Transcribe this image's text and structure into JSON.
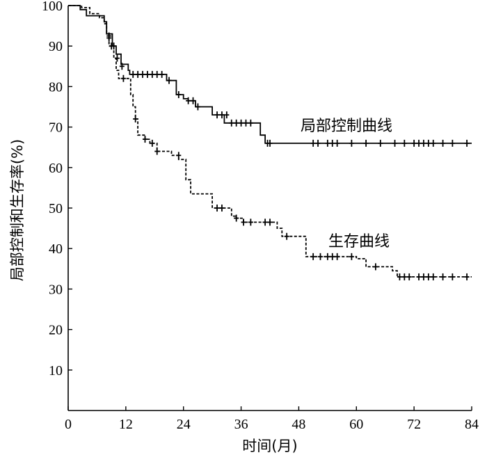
{
  "chart_data": {
    "type": "line",
    "xlabel": "时间(月)",
    "ylabel": "局部控制和生存率(%)",
    "xlim": [
      0,
      84
    ],
    "ylim": [
      0,
      100
    ],
    "x_ticks": [
      "0",
      "12",
      "24",
      "36",
      "48",
      "60",
      "72",
      "84"
    ],
    "y_ticks": [
      "10",
      "20",
      "30",
      "40",
      "50",
      "60",
      "70",
      "80",
      "90",
      "100"
    ],
    "grid": false,
    "legend": "none",
    "series": [
      {
        "name": "局部控制曲线",
        "line_style": "solid",
        "steps": [
          [
            0,
            100
          ],
          [
            2.5,
            99
          ],
          [
            3.8,
            97.5
          ],
          [
            7.5,
            96
          ],
          [
            8,
            93
          ],
          [
            9.2,
            90
          ],
          [
            10,
            88
          ],
          [
            11,
            85.5
          ],
          [
            12.5,
            84
          ],
          [
            12.8,
            83
          ],
          [
            20.5,
            81.5
          ],
          [
            22.5,
            78
          ],
          [
            24,
            77
          ],
          [
            25,
            76.5
          ],
          [
            26.5,
            75
          ],
          [
            30,
            73
          ],
          [
            32.5,
            71
          ],
          [
            39,
            71
          ],
          [
            40,
            68
          ],
          [
            41,
            66
          ],
          [
            84,
            66
          ]
        ],
        "censored": [
          [
            8.5,
            92.5
          ],
          [
            9.5,
            90
          ],
          [
            11.2,
            85
          ],
          [
            13.5,
            83
          ],
          [
            14.5,
            83
          ],
          [
            15.5,
            83
          ],
          [
            16.5,
            83
          ],
          [
            17.5,
            83
          ],
          [
            18.5,
            83
          ],
          [
            19.5,
            83
          ],
          [
            21,
            81.5
          ],
          [
            23,
            78
          ],
          [
            25,
            76.5
          ],
          [
            26,
            76.5
          ],
          [
            27,
            75
          ],
          [
            31,
            73
          ],
          [
            32,
            73
          ],
          [
            33,
            73
          ],
          [
            34,
            71
          ],
          [
            35,
            71
          ],
          [
            36,
            71
          ],
          [
            37,
            71
          ],
          [
            38,
            71
          ],
          [
            41.5,
            66
          ],
          [
            42,
            66
          ],
          [
            51,
            66
          ],
          [
            52,
            66
          ],
          [
            54,
            66
          ],
          [
            55,
            66
          ],
          [
            56,
            66
          ],
          [
            59,
            66
          ],
          [
            62,
            66
          ],
          [
            65,
            66
          ],
          [
            68,
            66
          ],
          [
            70,
            66
          ],
          [
            72,
            66
          ],
          [
            73,
            66
          ],
          [
            74,
            66
          ],
          [
            75,
            66
          ],
          [
            76,
            66
          ],
          [
            78,
            66
          ],
          [
            80,
            66
          ],
          [
            83,
            66
          ]
        ]
      },
      {
        "name": "生存曲线",
        "line_style": "dashed",
        "steps": [
          [
            0,
            100
          ],
          [
            2.8,
            99.5
          ],
          [
            4.5,
            98
          ],
          [
            6.5,
            97
          ],
          [
            7.5,
            95.5
          ],
          [
            8,
            93
          ],
          [
            8.5,
            90
          ],
          [
            9.5,
            87
          ],
          [
            10,
            84
          ],
          [
            10.5,
            82
          ],
          [
            12.5,
            82
          ],
          [
            13,
            78
          ],
          [
            13.5,
            75
          ],
          [
            14,
            72
          ],
          [
            14.5,
            68
          ],
          [
            16,
            67
          ],
          [
            17,
            66
          ],
          [
            18.5,
            64
          ],
          [
            21.5,
            63
          ],
          [
            23,
            62
          ],
          [
            24.5,
            57
          ],
          [
            25.5,
            53.5
          ],
          [
            29.5,
            53.5
          ],
          [
            30,
            50
          ],
          [
            33,
            50
          ],
          [
            34,
            48
          ],
          [
            35,
            47.5
          ],
          [
            36.5,
            46.5
          ],
          [
            42,
            46.5
          ],
          [
            43.5,
            45
          ],
          [
            44.5,
            43
          ],
          [
            49,
            43
          ],
          [
            49.5,
            38
          ],
          [
            58,
            38
          ],
          [
            60,
            37.5
          ],
          [
            62,
            35.5
          ],
          [
            66.5,
            35.5
          ],
          [
            67.5,
            34.5
          ],
          [
            68.5,
            33
          ],
          [
            84,
            33
          ]
        ],
        "censored": [
          [
            8.5,
            92
          ],
          [
            9,
            90
          ],
          [
            10.2,
            87
          ],
          [
            11.5,
            82
          ],
          [
            14,
            72
          ],
          [
            16,
            67
          ],
          [
            17.5,
            66
          ],
          [
            18.5,
            64
          ],
          [
            23,
            63
          ],
          [
            31,
            50
          ],
          [
            32,
            50
          ],
          [
            35,
            47.5
          ],
          [
            36.5,
            46.5
          ],
          [
            38,
            46.5
          ],
          [
            41,
            46.5
          ],
          [
            42,
            46.5
          ],
          [
            45.5,
            43
          ],
          [
            51,
            38
          ],
          [
            52.5,
            38
          ],
          [
            54,
            38
          ],
          [
            55,
            38
          ],
          [
            56,
            38
          ],
          [
            59,
            38
          ],
          [
            64,
            35.5
          ],
          [
            69,
            33
          ],
          [
            70,
            33
          ],
          [
            71,
            33
          ],
          [
            73,
            33
          ],
          [
            74,
            33
          ],
          [
            75,
            33
          ],
          [
            76,
            33
          ],
          [
            78,
            33
          ],
          [
            80,
            33
          ],
          [
            83,
            33
          ]
        ]
      }
    ]
  }
}
